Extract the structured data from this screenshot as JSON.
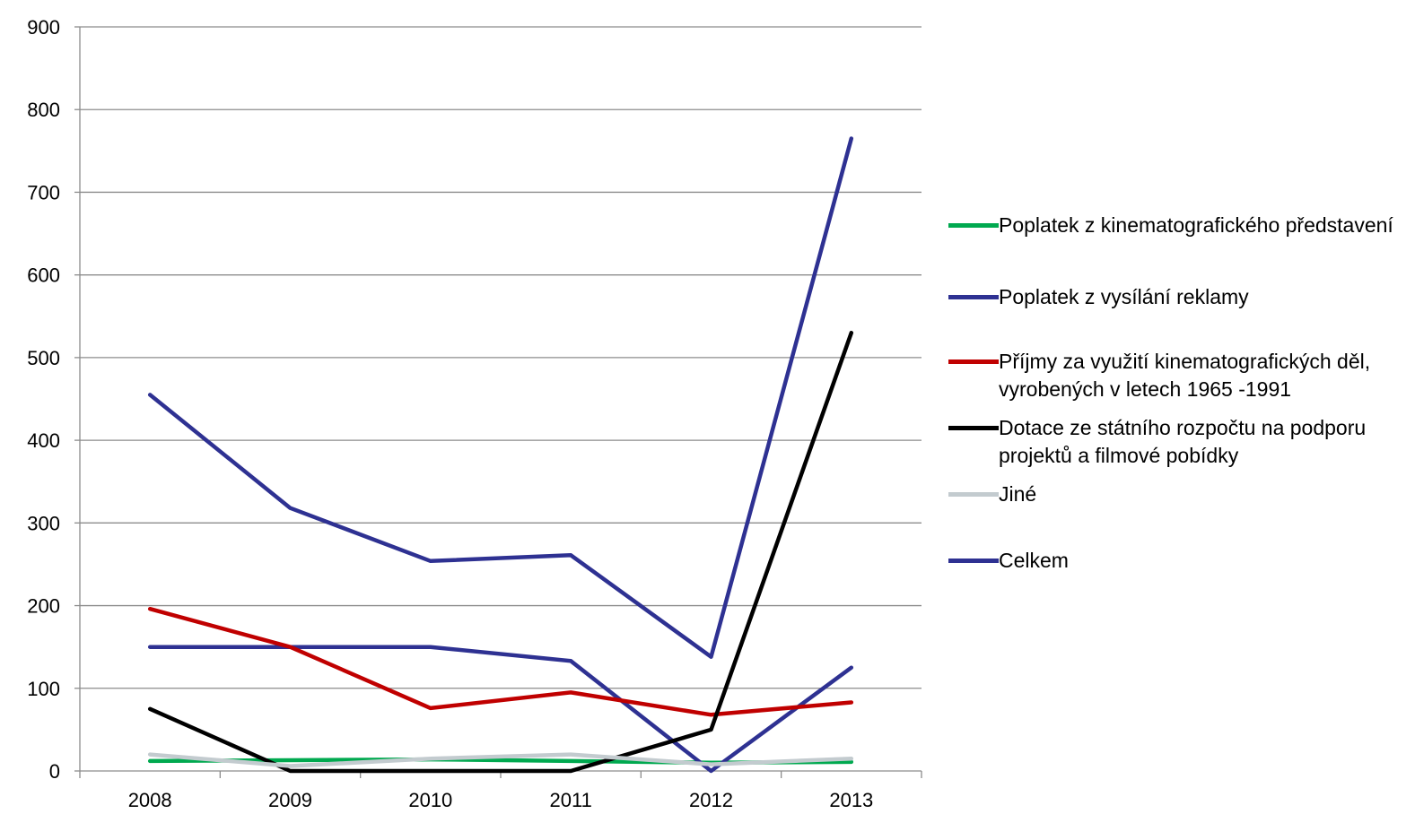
{
  "chart_data": {
    "type": "line",
    "title": "",
    "xlabel": "",
    "ylabel": "",
    "categories": [
      "2008",
      "2009",
      "2010",
      "2011",
      "2012",
      "2013"
    ],
    "ylim": [
      0,
      900
    ],
    "yticks": [
      "0",
      "100",
      "200",
      "300",
      "400",
      "500",
      "600",
      "700",
      "800",
      "900"
    ],
    "grid": "horizontal",
    "legend_position": "right",
    "series": [
      {
        "name": "Poplatek z kinematografického představení",
        "color": "#00a94f",
        "values": [
          12,
          13,
          14,
          12,
          10,
          11
        ]
      },
      {
        "name": "Poplatek z vysílání reklamy",
        "color": "#2e3192",
        "values": [
          150,
          150,
          150,
          133,
          0,
          125
        ]
      },
      {
        "name": "Příjmy za využití kinematografických děl, vyrobených v letech 1965 -1991",
        "color": "#c00000",
        "values": [
          196,
          150,
          76,
          95,
          68,
          83
        ]
      },
      {
        "name": "Dotace ze státního rozpočtu na podporu projektů a filmové pobídky",
        "color": "#000000",
        "values": [
          75,
          0,
          0,
          0,
          50,
          530
        ]
      },
      {
        "name": "Jiné",
        "color": "#c3cbcf",
        "values": [
          20,
          6,
          15,
          20,
          8,
          15
        ]
      },
      {
        "name": "Celkem",
        "color": "#2e3192",
        "values": [
          455,
          318,
          254,
          261,
          138,
          765
        ]
      }
    ]
  }
}
